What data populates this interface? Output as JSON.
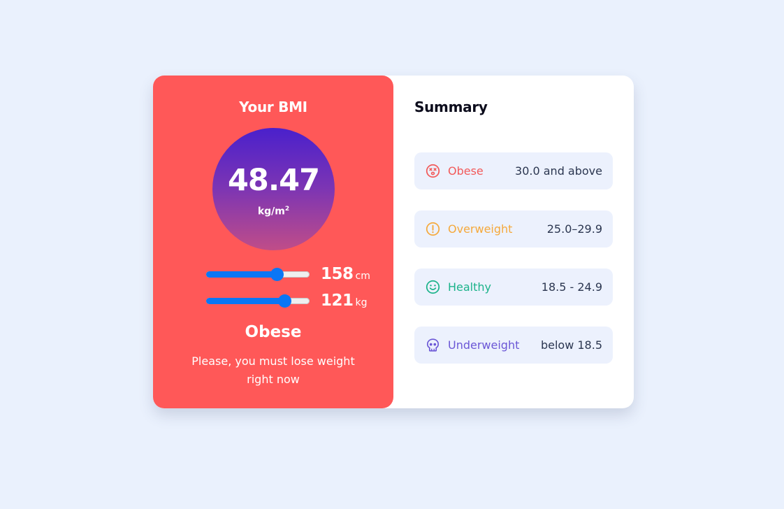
{
  "left": {
    "title": "Your BMI",
    "bmi_value": "48.47",
    "bmi_unit": "kg/m",
    "bmi_unit_sup": "2",
    "height_value": "158",
    "height_unit": "cm",
    "weight_value": "121",
    "weight_unit": "kg",
    "category": "Obese",
    "message": "Please, you must lose weight right now"
  },
  "sliders": {
    "height_fraction": 0.68,
    "weight_fraction": 0.76
  },
  "summary": {
    "title": "Summary",
    "rows": [
      {
        "label": "Obese",
        "range": "30.0 and above",
        "icon": "dizzy-face-icon",
        "color": "#f25a5a"
      },
      {
        "label": "Overweight",
        "range": "25.0–29.9",
        "icon": "exclamation-circle-icon",
        "color": "#f5a93c"
      },
      {
        "label": "Healthy",
        "range": "18.5 - 24.9",
        "icon": "smiley-face-icon",
        "color": "#1bb38a"
      },
      {
        "label": "Underweight",
        "range": "below 18.5",
        "icon": "skull-icon",
        "color": "#6b57d6"
      }
    ]
  },
  "colors": {
    "background": "#eaf1fd",
    "left_panel": "#ff5858",
    "slider_accent": "#0a76f5"
  }
}
